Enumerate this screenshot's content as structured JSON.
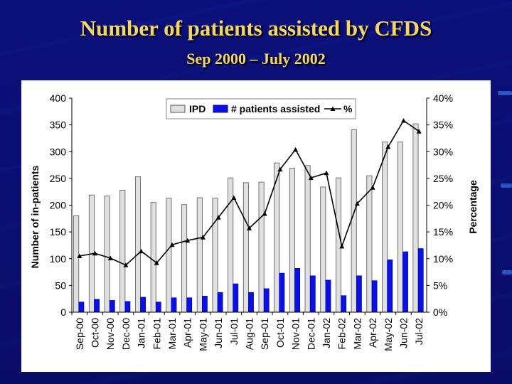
{
  "slide": {
    "title": "Number of patients assisted by CFDS",
    "subtitle": "Sep 2000 – July 2002"
  },
  "colors": {
    "background": "#0b0f7a",
    "title": "#f3d56a",
    "ipd_bar": "#e0e0e0",
    "patients_bar": "#0a10e6",
    "line": "#000000"
  },
  "chart_data": {
    "type": "bar",
    "categories": [
      "Sep-00",
      "Oct-00",
      "Nov-00",
      "Dec-00",
      "Jan-01",
      "Feb-01",
      "Mar-01",
      "Apr-01",
      "May-01",
      "Jun-01",
      "Jul-01",
      "Aug-01",
      "Sep-01",
      "Oct-01",
      "Nov-01",
      "Dec-01",
      "Jan-02",
      "Feb-02",
      "Mar-02",
      "Apr-02",
      "May-02",
      "Jun-02",
      "Jul-02"
    ],
    "series": [
      {
        "name": "IPD",
        "type": "bar",
        "axis": "left",
        "values": [
          180,
          219,
          217,
          228,
          253,
          205,
          213,
          201,
          214,
          213,
          251,
          242,
          243,
          279,
          269,
          274,
          234,
          251,
          341,
          255,
          318,
          318,
          352
        ]
      },
      {
        "name": "# patients assisted",
        "type": "bar",
        "axis": "left",
        "values": [
          19,
          24,
          22,
          20,
          28,
          19,
          27,
          27,
          30,
          37,
          53,
          37,
          44,
          73,
          82,
          68,
          60,
          31,
          68,
          59,
          98,
          113,
          119
        ]
      },
      {
        "name": "%",
        "type": "line",
        "axis": "right",
        "values": [
          10.5,
          11.0,
          10.1,
          8.8,
          11.4,
          9.2,
          12.6,
          13.4,
          14.0,
          17.7,
          21.4,
          15.7,
          18.4,
          26.7,
          30.4,
          25.1,
          26.0,
          12.3,
          20.3,
          23.3,
          30.9,
          35.8,
          33.8
        ]
      }
    ],
    "ylabel": "Number of in-patients",
    "y2label": "Percentage",
    "ylim": [
      0,
      400
    ],
    "yticks": [
      "0",
      "50",
      "100",
      "150",
      "200",
      "250",
      "300",
      "350",
      "400"
    ],
    "y2lim": [
      0,
      40
    ],
    "y2ticks": [
      "0%",
      "5%",
      "10%",
      "15%",
      "20%",
      "25%",
      "30%",
      "35%",
      "40%"
    ],
    "legend": [
      "IPD",
      "# patients assisted",
      "%"
    ],
    "legend_position": "top-center",
    "grid": false
  }
}
